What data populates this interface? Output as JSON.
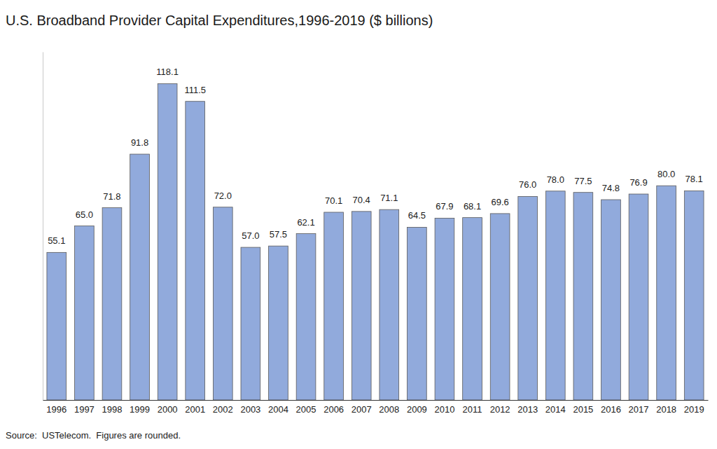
{
  "chart_data": {
    "type": "bar",
    "title": "U.S. Broadband Provider Capital Expenditures,1996-2019 ($ billions)",
    "annotations": [
      "Source:  USTelecom.  Figures are rounded."
    ],
    "categories": [
      "1996",
      "1997",
      "1998",
      "1999",
      "2000",
      "2001",
      "2002",
      "2003",
      "2004",
      "2005",
      "2006",
      "2007",
      "2008",
      "2009",
      "2010",
      "2011",
      "2012",
      "2013",
      "2014",
      "2015",
      "2016",
      "2017",
      "2018",
      "2019"
    ],
    "values": [
      55.1,
      65.0,
      71.8,
      91.8,
      118.1,
      111.5,
      72.0,
      57.0,
      57.5,
      62.1,
      70.1,
      70.4,
      71.1,
      64.5,
      67.9,
      68.1,
      69.6,
      76.0,
      78.0,
      77.5,
      74.8,
      76.9,
      80.0,
      78.1
    ],
    "value_labels": [
      "55.1",
      "65.0",
      "71.8",
      "91.8",
      "118.1",
      "111.5",
      "72.0",
      "57.0",
      "57.5",
      "62.1",
      "70.1",
      "70.4",
      "71.1",
      "64.5",
      "67.9",
      "68.1",
      "69.6",
      "76.0",
      "78.0",
      "77.5",
      "74.8",
      "76.9",
      "80.0",
      "78.1"
    ],
    "color": "#91aadc",
    "ylim": [
      0,
      130
    ],
    "grid": false,
    "data_labels": true,
    "tick_labels": "x"
  }
}
